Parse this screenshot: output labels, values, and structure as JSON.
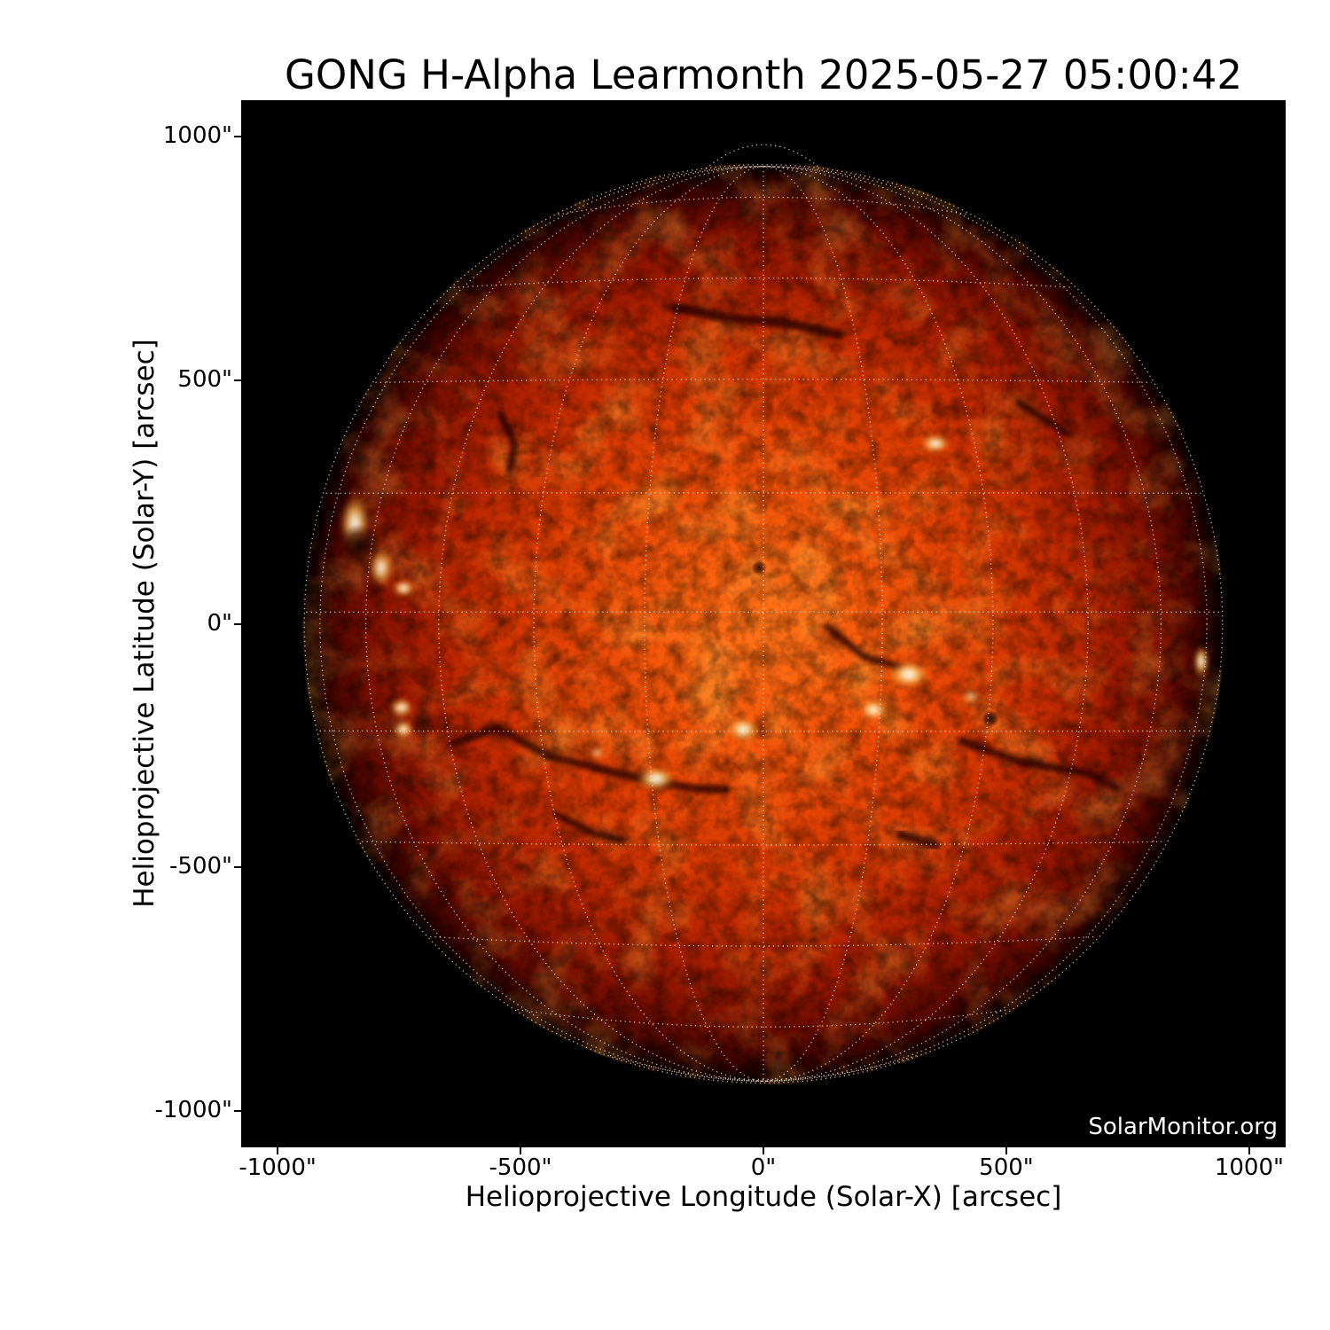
{
  "figure": {
    "title": "GONG H-Alpha Learmonth 2025-05-27 05:00:42",
    "watermark": "SolarMonitor.org",
    "background_color": "#ffffff",
    "plot_background_color": "#000000"
  },
  "chart_data": {
    "type": "heatmap",
    "subtype": "solar-full-disk-halpha-image",
    "title": "GONG H-Alpha Learmonth 2025-05-27 05:00:42",
    "xlabel": "Helioprojective Longitude (Solar-X) [arcsec]",
    "ylabel": "Helioprojective Latitude (Solar-Y) [arcsec]",
    "xlim": [
      -1075,
      1075
    ],
    "ylim": [
      -1075,
      1075
    ],
    "xticks": [
      {
        "value": -1000,
        "label": "-1000\""
      },
      {
        "value": -500,
        "label": "-500\""
      },
      {
        "value": 0,
        "label": "0\""
      },
      {
        "value": 500,
        "label": "500\""
      },
      {
        "value": 1000,
        "label": "1000\""
      }
    ],
    "yticks": [
      {
        "value": 1000,
        "label": "1000\""
      },
      {
        "value": 500,
        "label": "500\""
      },
      {
        "value": 0,
        "label": "0\""
      },
      {
        "value": -500,
        "label": "-500\""
      },
      {
        "value": -1000,
        "label": "-1000\""
      }
    ],
    "grid": {
      "style": "dotted",
      "color": "#ffffff",
      "heliographic_spacing_deg": 15,
      "limb_circle": true
    },
    "sun": {
      "radius_arcsec": 945,
      "center_arcsec": [
        0,
        0
      ],
      "equator_offset_arcsec": 24,
      "palette": {
        "disk_core": "#ff7418",
        "disk_mid": "#d63702",
        "disk_limb": "#570800",
        "plage": "#ffffff",
        "filament": "#240600",
        "space": "#000000"
      }
    },
    "features": {
      "plages": [
        {
          "x": 354,
          "y": 370,
          "w": 60,
          "h": 38
        },
        {
          "x": -741,
          "y": 73,
          "w": 46,
          "h": 34
        },
        {
          "x": -841,
          "y": 206,
          "w": 60,
          "h": 115,
          "o": 0.9
        },
        {
          "x": -787,
          "y": 115,
          "w": 48,
          "h": 75,
          "o": 0.85
        },
        {
          "x": -745,
          "y": -172,
          "w": 48,
          "h": 38
        },
        {
          "x": -741,
          "y": -217,
          "w": 42,
          "h": 34
        },
        {
          "x": 299,
          "y": -104,
          "w": 86,
          "h": 56
        },
        {
          "x": 226,
          "y": -177,
          "w": 56,
          "h": 42
        },
        {
          "x": -42,
          "y": -217,
          "w": 64,
          "h": 50
        },
        {
          "x": -221,
          "y": -318,
          "w": 80,
          "h": 48
        },
        {
          "x": 901,
          "y": -77,
          "w": 30,
          "h": 64
        },
        {
          "x": 427,
          "y": -150,
          "w": 40,
          "h": 30,
          "o": 0.6
        },
        {
          "x": -343,
          "y": -265,
          "w": 30,
          "h": 24,
          "o": 0.65
        }
      ],
      "filaments": [
        {
          "w": 20,
          "pts": [
            [
              -179,
              648
            ],
            [
              -57,
              626
            ],
            [
              35,
              620
            ],
            [
              89,
              608
            ],
            [
              157,
              593
            ]
          ]
        },
        {
          "w": 15,
          "pts": [
            [
              -540,
              429
            ],
            [
              -513,
              370
            ],
            [
              -522,
              316
            ]
          ]
        },
        {
          "w": 16,
          "pts": [
            [
              527,
              453
            ],
            [
              628,
              389
            ]
          ]
        },
        {
          "w": 17,
          "pts": [
            [
              -641,
              -246
            ],
            [
              -549,
              -214
            ],
            [
              -440,
              -272
            ],
            [
              -294,
              -308
            ],
            [
              -148,
              -338
            ],
            [
              -75,
              -341
            ]
          ]
        },
        {
          "w": 16,
          "pts": [
            [
              409,
              -241
            ],
            [
              527,
              -283
            ],
            [
              673,
              -308
            ],
            [
              728,
              -338
            ]
          ]
        },
        {
          "w": 15,
          "pts": [
            [
              130,
              -5
            ],
            [
              208,
              -68
            ],
            [
              281,
              -89
            ]
          ]
        },
        {
          "w": 19,
          "pts": [
            [
              281,
              -433
            ],
            [
              354,
              -454
            ]
          ]
        },
        {
          "w": 14,
          "pts": [
            [
              -430,
              -390
            ],
            [
              -350,
              -430
            ],
            [
              -290,
              -445
            ]
          ]
        }
      ],
      "dark_spots": [
        {
          "x": 467,
          "y": -195,
          "r": 9
        },
        {
          "x": -832,
          "y": 161,
          "r": 22
        },
        {
          "x": -699,
          "y": -201,
          "r": 14,
          "o": 0.7
        },
        {
          "x": -9,
          "y": 115,
          "r": 8,
          "o": 0.8
        }
      ]
    },
    "watermark": "SolarMonitor.org"
  }
}
